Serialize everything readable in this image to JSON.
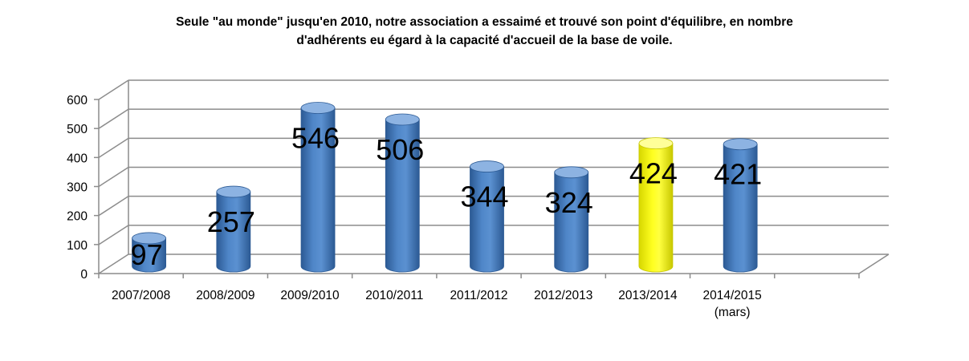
{
  "chart_data": {
    "type": "bar",
    "title_lines": [
      "Seule \"au monde\" jusqu'en 2010, notre association  a essaimé et trouvé son point d'équilibre, en nombre",
      "d'adhérents eu égard à la capacité d'accueil de la base de voile."
    ],
    "categories": [
      [
        "2007/2008"
      ],
      [
        "2008/2009"
      ],
      [
        "2009/2010"
      ],
      [
        "2010/2011"
      ],
      [
        "2011/2012"
      ],
      [
        "2012/2013"
      ],
      [
        "2013/2014"
      ],
      [
        "2014/2015",
        "(mars)"
      ]
    ],
    "values": [
      97,
      257,
      546,
      506,
      344,
      324,
      424,
      421
    ],
    "data_labels": [
      "97",
      "257",
      "546",
      "506",
      "344",
      "324",
      "424",
      "421"
    ],
    "highlight_index": 6,
    "ylim": [
      0,
      600
    ],
    "yticks": [
      0,
      100,
      200,
      300,
      400,
      500,
      600
    ],
    "grid": true,
    "legend": "none",
    "colors": {
      "bar": "#4a7ebf",
      "bar_dark": "#2c5a94",
      "bar_light": "#8db3e2",
      "highlight": "#ffff00",
      "highlight_dark": "#c7c700",
      "highlight_light": "#ffff99",
      "grid": "#8c8c8c"
    }
  }
}
